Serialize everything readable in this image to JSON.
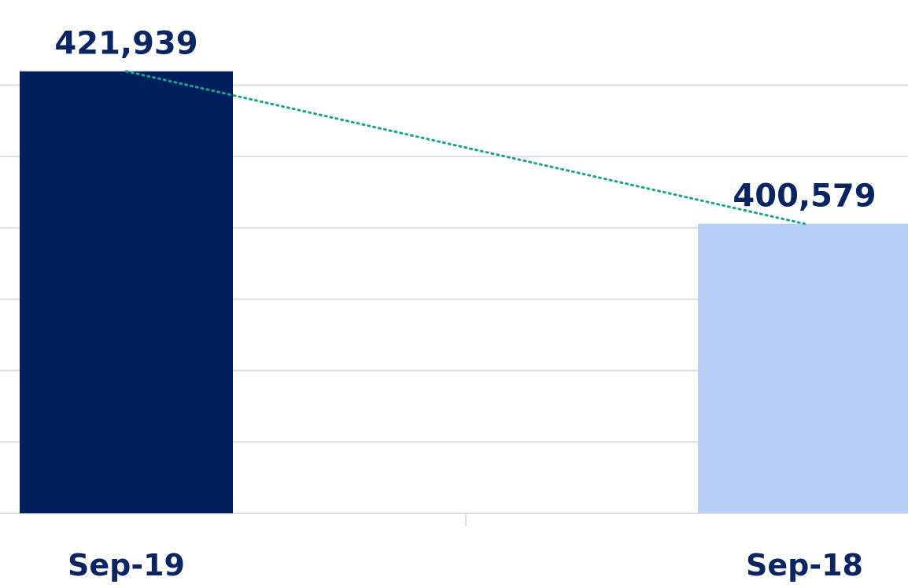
{
  "chart_data": {
    "type": "bar",
    "title": "",
    "xlabel": "",
    "ylabel": "",
    "categories": [
      "Sep-19",
      "Sep-18"
    ],
    "values": [
      421939,
      400579
    ],
    "data_labels": [
      "421,939",
      "400,579"
    ],
    "ylim": [
      360000,
      424000
    ],
    "grid": true,
    "trendline": "dotted",
    "colors": {
      "bars": [
        "#001f5c",
        "#b9d0f6"
      ],
      "text": "#0b2560",
      "trendline": "#1aa58a",
      "grid": "#dedde6"
    }
  }
}
